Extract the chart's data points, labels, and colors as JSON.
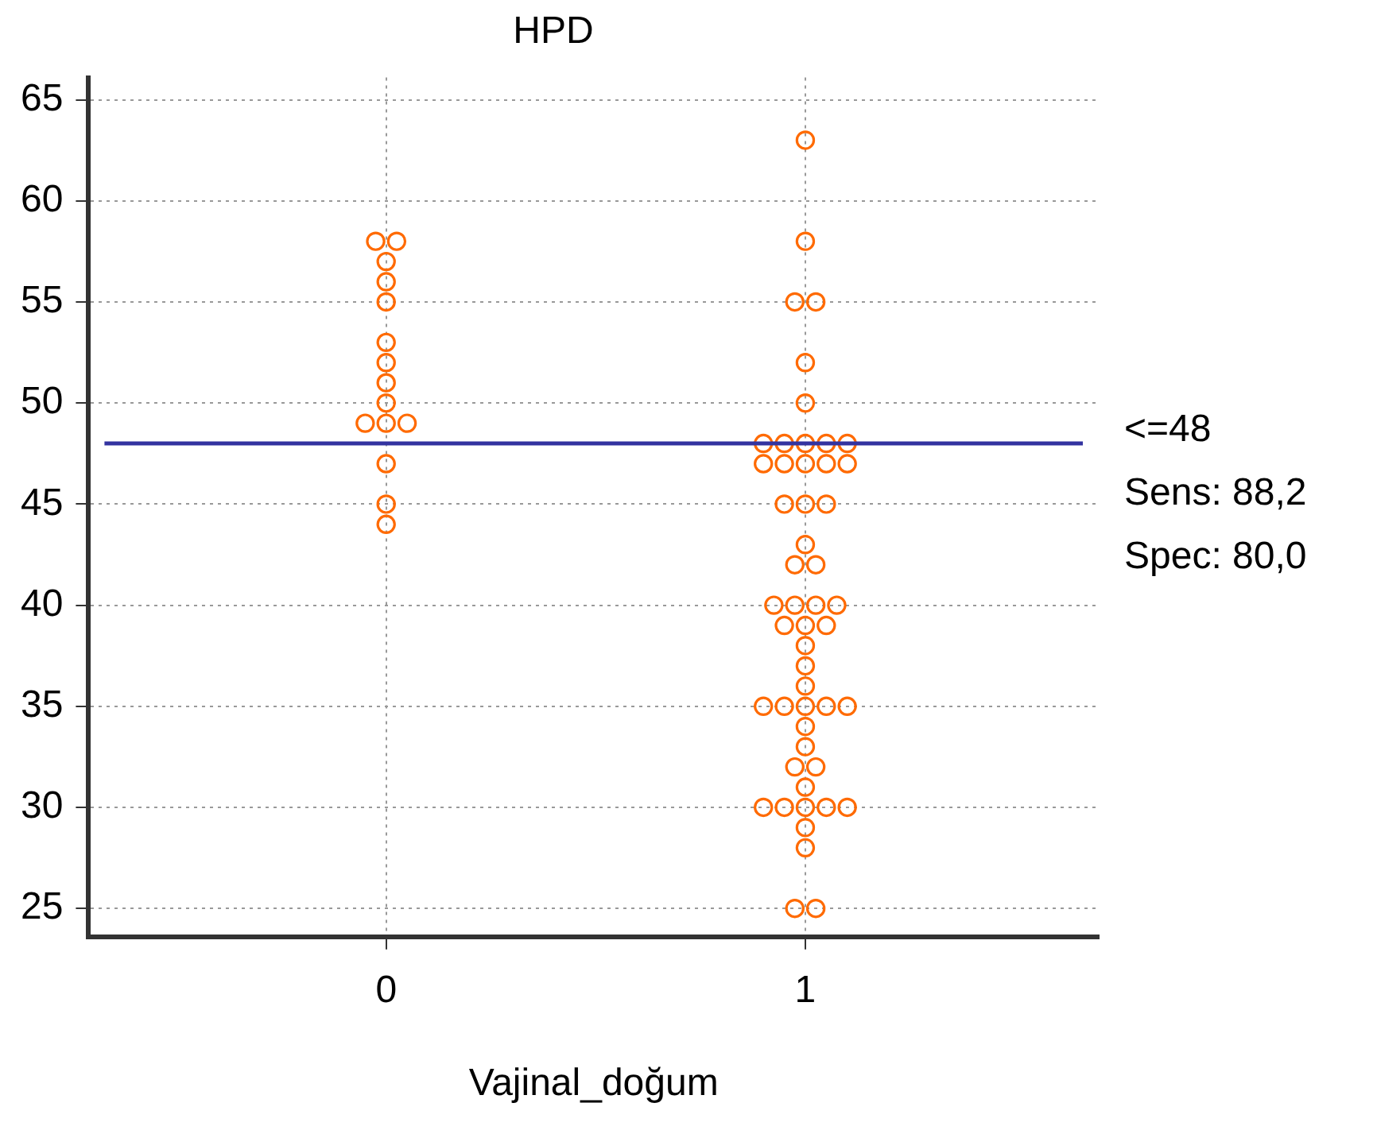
{
  "chart_data": {
    "type": "scatter",
    "title": "HPD",
    "xlabel": "Vajinal_doğum",
    "xlim": [
      -0.71,
      1.7
    ],
    "xticks": [
      0,
      1
    ],
    "ylim": [
      23.6,
      66.1
    ],
    "yticks": [
      25,
      30,
      35,
      40,
      45,
      50,
      55,
      60,
      65
    ],
    "grid": true,
    "marker": "circle",
    "legend": false,
    "series": [
      {
        "color": "#ff6a00",
        "x": [
          -0.025,
          0.025,
          0,
          0,
          0,
          0,
          0,
          0,
          0,
          -0.05,
          0,
          0.05,
          0,
          0,
          0
        ],
        "values": [
          58,
          58,
          57,
          56,
          55,
          53,
          52,
          51,
          50,
          49,
          49,
          49,
          47,
          45,
          44
        ]
      },
      {
        "color": "#ff6a00",
        "x": [
          1,
          1,
          0.975,
          1.025,
          1,
          1,
          0.9,
          0.95,
          1,
          1.05,
          1.1,
          0.9,
          0.95,
          1,
          1.05,
          1.1,
          0.95,
          1,
          1.05,
          1,
          0.975,
          1.025,
          0.925,
          0.975,
          1.025,
          1.075,
          0.95,
          1,
          1.05,
          1,
          1,
          1,
          0.9,
          0.95,
          1,
          1.05,
          1.1,
          1,
          1,
          0.975,
          1.025,
          1,
          0.9,
          0.95,
          1,
          1.05,
          1.1,
          1,
          1,
          0.975,
          1.025
        ],
        "values": [
          63,
          58,
          55,
          55,
          52,
          50,
          48,
          48,
          48,
          48,
          48,
          47,
          47,
          47,
          47,
          47,
          45,
          45,
          45,
          43,
          42,
          42,
          40,
          40,
          40,
          40,
          39,
          39,
          39,
          38,
          37,
          36,
          35,
          35,
          35,
          35,
          35,
          34,
          33,
          32,
          32,
          31,
          30,
          30,
          30,
          30,
          30,
          29,
          28,
          25,
          25
        ]
      }
    ],
    "ref_lines": [
      {
        "axis": "y",
        "value": 48,
        "label": "<=48",
        "color": "#3333a0"
      }
    ],
    "annotations": [
      "Sens: 88,2",
      "Spec: 80,0"
    ]
  }
}
